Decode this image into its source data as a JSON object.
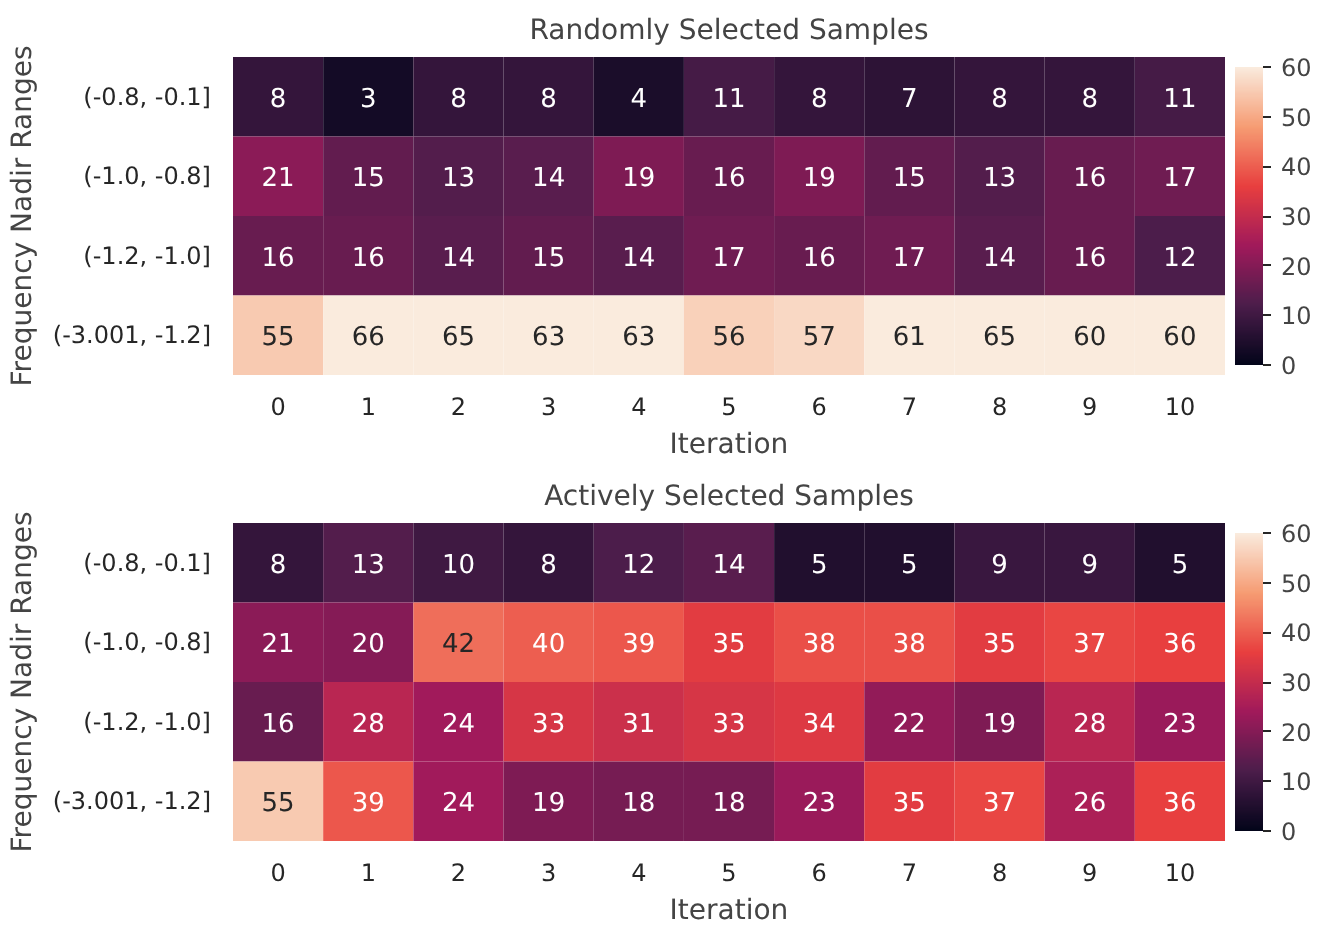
{
  "chart_data": [
    {
      "type": "heatmap",
      "title": "Randomly Selected Samples",
      "xlabel": "Iteration",
      "ylabel": "Frequency Nadir Ranges",
      "categories": [
        "0",
        "1",
        "2",
        "3",
        "4",
        "5",
        "6",
        "7",
        "8",
        "9",
        "10"
      ],
      "y_categories": [
        "(-0.8, -0.1]",
        "(-1.0, -0.8]",
        "(-1.2, -1.0]",
        "(-3.001, -1.2]"
      ],
      "cells": [
        [
          8,
          3,
          8,
          8,
          4,
          11,
          8,
          7,
          8,
          8,
          11
        ],
        [
          21,
          15,
          13,
          14,
          19,
          16,
          19,
          15,
          13,
          16,
          17
        ],
        [
          16,
          16,
          14,
          15,
          14,
          17,
          16,
          17,
          14,
          16,
          12
        ],
        [
          55,
          66,
          65,
          63,
          63,
          56,
          57,
          61,
          65,
          60,
          60
        ]
      ],
      "clim": [
        0,
        60
      ],
      "cticks": [
        0,
        10,
        20,
        30,
        40,
        50,
        60
      ],
      "data_labels": true
    },
    {
      "type": "heatmap",
      "title": "Actively Selected Samples",
      "xlabel": "Iteration",
      "ylabel": "Frequency Nadir Ranges",
      "categories": [
        "0",
        "1",
        "2",
        "3",
        "4",
        "5",
        "6",
        "7",
        "8",
        "9",
        "10"
      ],
      "y_categories": [
        "(-0.8, -0.1]",
        "(-1.0, -0.8]",
        "(-1.2, -1.0]",
        "(-3.001, -1.2]"
      ],
      "cells": [
        [
          8,
          13,
          10,
          8,
          12,
          14,
          5,
          5,
          9,
          9,
          5
        ],
        [
          21,
          20,
          42,
          40,
          39,
          35,
          38,
          38,
          35,
          37,
          36
        ],
        [
          16,
          28,
          24,
          33,
          31,
          33,
          34,
          22,
          19,
          28,
          23
        ],
        [
          55,
          39,
          24,
          19,
          18,
          18,
          23,
          35,
          37,
          26,
          36
        ]
      ],
      "clim": [
        0,
        60
      ],
      "cticks": [
        0,
        10,
        20,
        30,
        40,
        50,
        60
      ],
      "data_labels": true
    }
  ]
}
